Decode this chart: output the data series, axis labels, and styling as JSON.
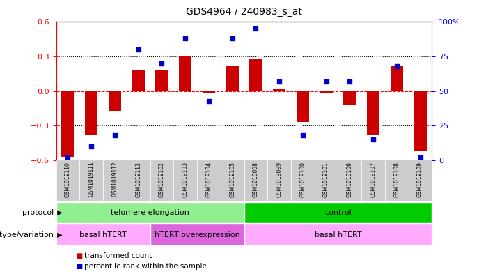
{
  "title": "GDS4964 / 240983_s_at",
  "samples": [
    "GSM1019110",
    "GSM1019111",
    "GSM1019112",
    "GSM1019113",
    "GSM1019102",
    "GSM1019103",
    "GSM1019104",
    "GSM1019105",
    "GSM1019098",
    "GSM1019099",
    "GSM1019100",
    "GSM1019101",
    "GSM1019106",
    "GSM1019107",
    "GSM1019108",
    "GSM1019109"
  ],
  "bar_values": [
    -0.57,
    -0.38,
    -0.17,
    0.18,
    0.18,
    0.3,
    -0.02,
    0.22,
    0.28,
    0.02,
    -0.27,
    -0.02,
    -0.12,
    -0.38,
    0.22,
    -0.52
  ],
  "dot_values": [
    2,
    10,
    18,
    80,
    70,
    88,
    43,
    88,
    95,
    57,
    18,
    57,
    57,
    15,
    68,
    2
  ],
  "bar_color": "#cc0000",
  "dot_color": "#0000cc",
  "ylim_left": [
    -0.6,
    0.6
  ],
  "ylim_right": [
    0,
    100
  ],
  "yticks_left": [
    -0.6,
    -0.3,
    0,
    0.3,
    0.6
  ],
  "yticks_right": [
    0,
    25,
    50,
    75,
    100
  ],
  "dotted_lines": [
    -0.3,
    0.3
  ],
  "protocol_groups": [
    {
      "label": "telomere elongation",
      "start": 0,
      "end": 8,
      "color": "#90ee90"
    },
    {
      "label": "control",
      "start": 8,
      "end": 16,
      "color": "#00cc00"
    }
  ],
  "genotype_groups": [
    {
      "label": "basal hTERT",
      "start": 0,
      "end": 4,
      "color": "#ffaaff"
    },
    {
      "label": "hTERT overexpression",
      "start": 4,
      "end": 8,
      "color": "#dd66dd"
    },
    {
      "label": "basal hTERT",
      "start": 8,
      "end": 16,
      "color": "#ffaaff"
    }
  ],
  "protocol_label": "protocol",
  "genotype_label": "genotype/variation",
  "legend_bar": "transformed count",
  "legend_dot": "percentile rank within the sample",
  "xtick_bg": "#cccccc"
}
